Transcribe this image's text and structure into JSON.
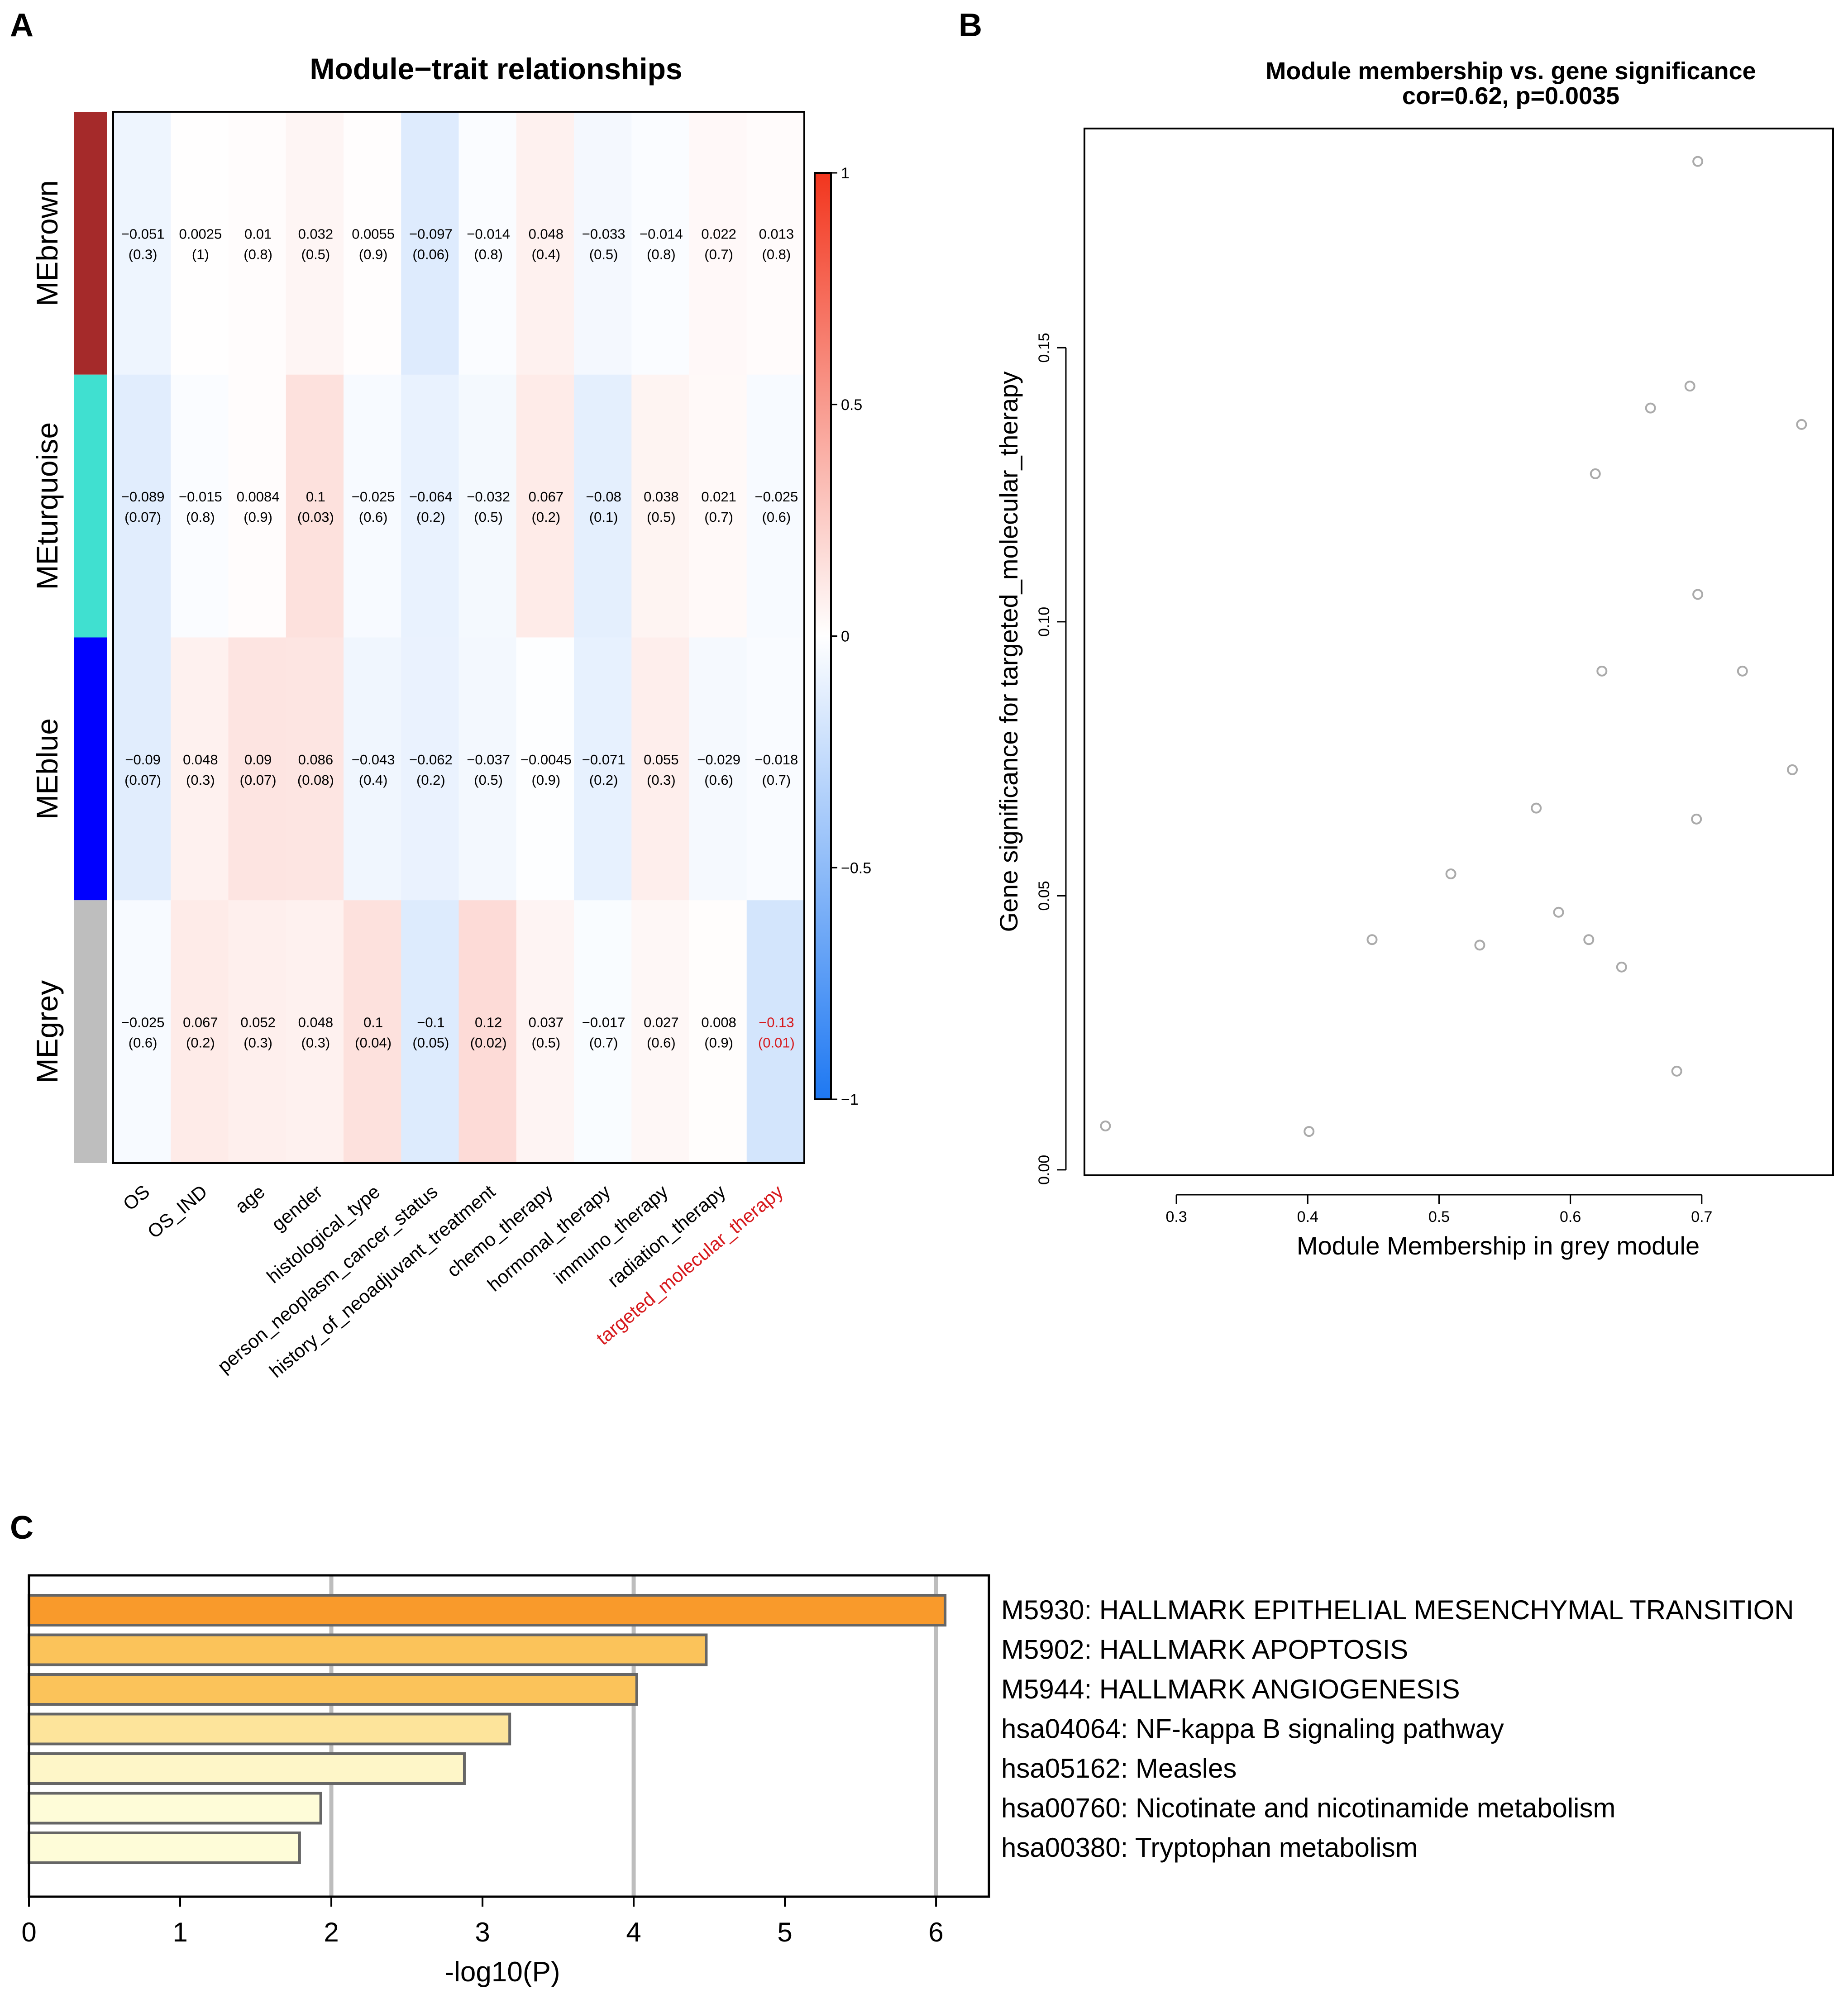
{
  "panel_labels": {
    "a": "A",
    "b": "B",
    "c": "C"
  },
  "colors": {
    "neg": "#1E78F2",
    "pos": "#F2361E",
    "highlight": "#D7191C",
    "bar_fills": [
      "#F99A2B",
      "#FBC35A",
      "#FBC35A",
      "#FDE49B",
      "#FEF6C8",
      "#FEFCD8",
      "#FEFCD8"
    ],
    "bar_edge": "#666666",
    "grid": "#BDBDBD",
    "point": "#AAAAAA",
    "module_colors": [
      "#A52A2A",
      "#40E0D0",
      "#0000FF",
      "#BEBEBE"
    ]
  },
  "chart_data": [
    {
      "id": "A",
      "type": "heatmap",
      "title": "Module−trait relationships",
      "rows": [
        "MEbrown",
        "MEturquoise",
        "MEblue",
        "MEgrey"
      ],
      "columns": [
        "OS",
        "OS_IND",
        "age",
        "gender",
        "histological_type",
        "person_neoplasm_cancer_status",
        "history_of_neoadjuvant_treatment",
        "chemo_therapy",
        "hormonal_therapy",
        "immuno_therapy",
        "radiation_therapy",
        "targeted_molecular_therapy"
      ],
      "highlight_column": "targeted_molecular_therapy",
      "highlight_cell": [
        3,
        11
      ],
      "values": [
        [
          "−0.051",
          "0.0025",
          "0.01",
          "0.032",
          "0.0055",
          "−0.097",
          "−0.014",
          "0.048",
          "−0.033",
          "−0.014",
          "0.022",
          "0.013"
        ],
        [
          "−0.089",
          "−0.015",
          "0.0084",
          "0.1",
          "−0.025",
          "−0.064",
          "−0.032",
          "0.067",
          "−0.08",
          "0.038",
          "0.021",
          "−0.025"
        ],
        [
          "−0.09",
          "0.048",
          "0.09",
          "0.086",
          "−0.043",
          "−0.062",
          "−0.037",
          "−0.0045",
          "−0.071",
          "0.055",
          "−0.029",
          "−0.018"
        ],
        [
          "−0.025",
          "0.067",
          "0.052",
          "0.048",
          "0.1",
          "−0.1",
          "0.12",
          "0.037",
          "−0.017",
          "0.027",
          "0.008",
          "−0.13"
        ]
      ],
      "pvalues": [
        [
          "(0.3)",
          "(1)",
          "(0.8)",
          "(0.5)",
          "(0.9)",
          "(0.06)",
          "(0.8)",
          "(0.4)",
          "(0.5)",
          "(0.8)",
          "(0.7)",
          "(0.8)"
        ],
        [
          "(0.07)",
          "(0.8)",
          "(0.9)",
          "(0.03)",
          "(0.6)",
          "(0.2)",
          "(0.5)",
          "(0.2)",
          "(0.1)",
          "(0.5)",
          "(0.7)",
          "(0.6)"
        ],
        [
          "(0.07)",
          "(0.3)",
          "(0.07)",
          "(0.08)",
          "(0.4)",
          "(0.2)",
          "(0.5)",
          "(0.9)",
          "(0.2)",
          "(0.3)",
          "(0.6)",
          "(0.7)"
        ],
        [
          "(0.6)",
          "(0.2)",
          "(0.3)",
          "(0.3)",
          "(0.04)",
          "(0.05)",
          "(0.02)",
          "(0.5)",
          "(0.7)",
          "(0.6)",
          "(0.9)",
          "(0.01)"
        ]
      ],
      "colorbar": {
        "ticks": [
          "1",
          "0.5",
          "0",
          "−0.5",
          "−1"
        ],
        "range": [
          -1,
          1
        ]
      }
    },
    {
      "id": "B",
      "type": "scatter",
      "title": "Module membership vs. gene significance",
      "subtitle": "cor=0.62, p=0.0035",
      "xlabel": "Module Membership in grey module",
      "ylabel": "Gene significance for targeted_molecular_therapy",
      "xlim": [
        0.23,
        0.8
      ],
      "ylim": [
        -0.001,
        0.19
      ],
      "xticks": [
        "0.3",
        "0.4",
        "0.5",
        "0.6",
        "0.7"
      ],
      "yticks": [
        "0.00",
        "0.05",
        "0.10",
        "0.15"
      ],
      "points": [
        [
          0.246,
          0.008
        ],
        [
          0.401,
          0.007
        ],
        [
          0.449,
          0.042
        ],
        [
          0.509,
          0.054
        ],
        [
          0.531,
          0.041
        ],
        [
          0.574,
          0.066
        ],
        [
          0.591,
          0.047
        ],
        [
          0.614,
          0.042
        ],
        [
          0.619,
          0.127
        ],
        [
          0.624,
          0.091
        ],
        [
          0.639,
          0.037
        ],
        [
          0.661,
          0.139
        ],
        [
          0.681,
          0.018
        ],
        [
          0.691,
          0.143
        ],
        [
          0.696,
          0.064
        ],
        [
          0.697,
          0.184
        ],
        [
          0.697,
          0.105
        ],
        [
          0.731,
          0.091
        ],
        [
          0.769,
          0.073
        ],
        [
          0.776,
          0.136
        ]
      ]
    },
    {
      "id": "C",
      "type": "bar",
      "orientation": "horizontal",
      "xlabel": "-log10(P)",
      "xlim": [
        0,
        6.35
      ],
      "xticks": [
        "0",
        "1",
        "2",
        "3",
        "4",
        "5",
        "6"
      ],
      "gridlines": [
        2,
        4,
        6
      ],
      "categories": [
        "M5930: HALLMARK EPITHELIAL MESENCHYMAL TRANSITION",
        "M5902: HALLMARK APOPTOSIS",
        "M5944: HALLMARK ANGIOGENESIS",
        "hsa04064: NF-kappa B signaling pathway",
        "hsa05162: Measles",
        "hsa00760: Nicotinate and nicotinamide metabolism",
        "hsa00380: Tryptophan metabolism"
      ],
      "values": [
        6.06,
        4.48,
        4.02,
        3.18,
        2.88,
        1.93,
        1.79
      ]
    }
  ]
}
